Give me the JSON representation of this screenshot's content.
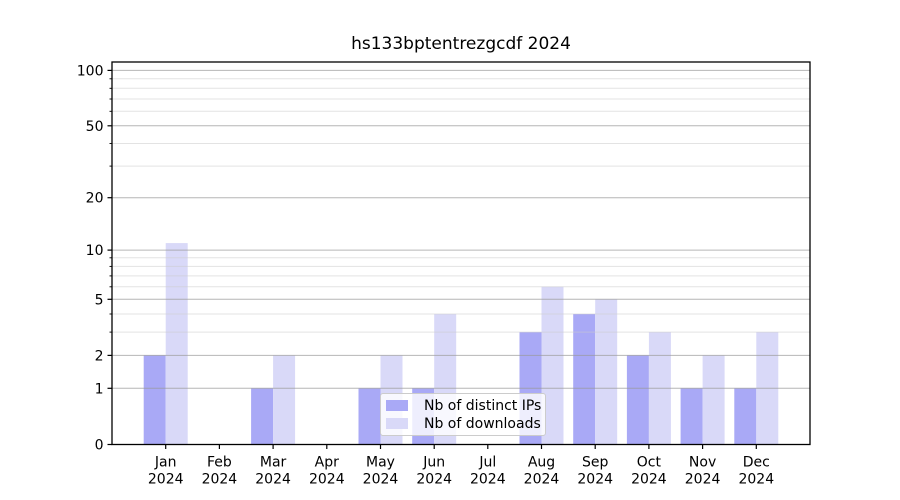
{
  "chart_data": {
    "type": "bar",
    "title": "hs133bptentrezgcdf 2024",
    "categories": [
      "Jan",
      "Feb",
      "Mar",
      "Apr",
      "May",
      "Jun",
      "Jul",
      "Aug",
      "Sep",
      "Oct",
      "Nov",
      "Dec"
    ],
    "x_sublabel": "2024",
    "series": [
      {
        "name": "Nb of distinct IPs",
        "color": "#a9a9f6",
        "values": [
          2,
          0,
          1,
          0,
          1,
          1,
          0,
          3,
          4,
          2,
          1,
          1
        ]
      },
      {
        "name": "Nb of downloads",
        "color": "#d9d9f8",
        "values": [
          11,
          0,
          2,
          0,
          2,
          4,
          0,
          6,
          5,
          3,
          2,
          3
        ]
      }
    ],
    "yscale": "log1p",
    "ylim": [
      0,
      111
    ],
    "yticks": [
      0,
      1,
      2,
      5,
      10,
      20,
      50,
      100
    ],
    "yticks_minor": [
      3,
      4,
      6,
      7,
      8,
      9,
      30,
      40,
      60,
      70,
      80,
      90
    ],
    "grid": true,
    "legend_position": "lower center"
  },
  "colors": {
    "background": "#ffffff",
    "axis": "#000000",
    "grid_major": "#9a9a9a",
    "grid_minor": "#cccccc",
    "tick_text": "#000000",
    "legend_border": "#cccccc"
  }
}
